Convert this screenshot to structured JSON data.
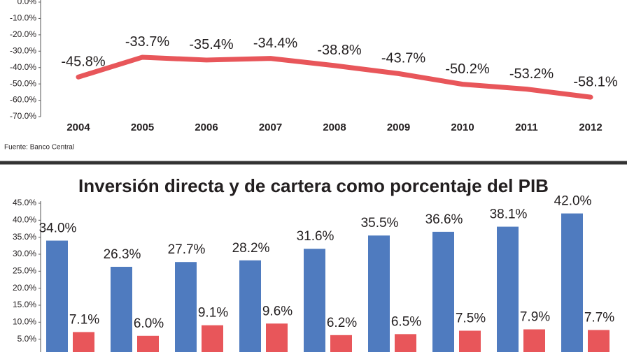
{
  "chart_data": [
    {
      "type": "line",
      "categories": [
        "2004",
        "2005",
        "2006",
        "2007",
        "2008",
        "2009",
        "2010",
        "2011",
        "2012"
      ],
      "values": [
        -45.8,
        -33.7,
        -35.4,
        -34.4,
        -38.8,
        -43.7,
        -50.2,
        -53.2,
        -58.1
      ],
      "value_labels": [
        "-45.8%",
        "-33.7%",
        "-35.4%",
        "-34.4%",
        "-38.8%",
        "-43.7%",
        "-50.2%",
        "-53.2%",
        "-58.1%"
      ],
      "color": "#e8565a",
      "ylim": [
        -70,
        0
      ],
      "yticks": [
        {
          "value": 0,
          "label": "0.0%"
        },
        {
          "value": -10,
          "label": "-10.0%"
        },
        {
          "value": -20,
          "label": "-20.0%"
        },
        {
          "value": -30,
          "label": "-30.0%"
        },
        {
          "value": -40,
          "label": "-40.0%"
        },
        {
          "value": -50,
          "label": "-50.0%"
        },
        {
          "value": -60,
          "label": "-60.0%"
        },
        {
          "value": -70,
          "label": "-70.0%"
        }
      ],
      "source": "Fuente: Banco Central"
    },
    {
      "type": "bar",
      "title": "Inversión directa y de cartera como porcentaje del PIB",
      "series": [
        {
          "color": "#4f7bbf",
          "values": [
            34.0,
            26.3,
            27.7,
            28.2,
            31.6,
            35.5,
            36.6,
            38.1,
            42.0
          ],
          "value_labels": [
            "34.0%",
            "26.3%",
            "27.7%",
            "28.2%",
            "31.6%",
            "35.5%",
            "36.6%",
            "38.1%",
            "42.0%"
          ]
        },
        {
          "color": "#e8565a",
          "values": [
            7.1,
            6.0,
            9.1,
            9.6,
            6.2,
            6.5,
            7.5,
            7.9,
            7.7
          ],
          "value_labels": [
            "7.1%",
            "6.0%",
            "9.1%",
            "9.6%",
            "6.2%",
            "6.5%",
            "7.5%",
            "7.9%",
            "7.7%"
          ]
        }
      ],
      "ylim": [
        0,
        45
      ],
      "yticks": [
        {
          "value": 5,
          "label": "5.0%"
        },
        {
          "value": 10,
          "label": "10.0%"
        },
        {
          "value": 15,
          "label": "15.0%"
        },
        {
          "value": 20,
          "label": "20.0%"
        },
        {
          "value": 25,
          "label": "25.0%"
        },
        {
          "value": 30,
          "label": "30.0%"
        },
        {
          "value": 35,
          "label": "35.0%"
        },
        {
          "value": 40,
          "label": "40.0%"
        },
        {
          "value": 45,
          "label": "45.0%"
        }
      ]
    }
  ]
}
